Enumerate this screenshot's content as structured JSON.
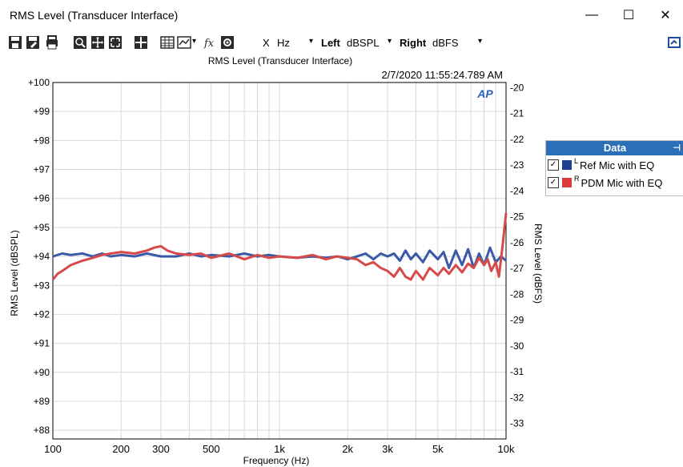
{
  "window": {
    "title": "RMS Level (Transducer Interface)",
    "minimize": "—",
    "maximize": "☐",
    "close": "✕"
  },
  "toolbar": {
    "x_label": "X",
    "x_unit": "Hz",
    "left_label": "Left",
    "left_unit": "dBSPL",
    "right_label": "Right",
    "right_unit": "dBFS"
  },
  "legend": {
    "header": "Data",
    "items": [
      {
        "channel": "L",
        "label": "Ref Mic with EQ",
        "color": "#1f3f8f",
        "checked": true
      },
      {
        "channel": "R",
        "label": "PDM Mic with EQ",
        "color": "#d93b3b",
        "checked": true
      }
    ]
  },
  "chart_data": {
    "type": "line",
    "title": "RMS Level (Transducer Interface)",
    "timestamp": "2/7/2020 11:55:24.789 AM",
    "logo": "AP",
    "xlabel": "Frequency (Hz)",
    "ylabel_left": "RMS Level (dBSPL)",
    "ylabel_right": "RMS Level (dBFS)",
    "x_scale": "log",
    "xlim": [
      100,
      10000
    ],
    "ylim_left": [
      87.7,
      100
    ],
    "ylim_right": [
      -33.6,
      -19.8
    ],
    "x_ticks": [
      {
        "value": 100,
        "label": "100"
      },
      {
        "value": 200,
        "label": "200"
      },
      {
        "value": 300,
        "label": "300"
      },
      {
        "value": 500,
        "label": "500"
      },
      {
        "value": 1000,
        "label": "1k"
      },
      {
        "value": 2000,
        "label": "2k"
      },
      {
        "value": 3000,
        "label": "3k"
      },
      {
        "value": 5000,
        "label": "5k"
      },
      {
        "value": 10000,
        "label": "10k"
      }
    ],
    "y_ticks_left": [
      {
        "value": 100,
        "label": "+100"
      },
      {
        "value": 99,
        "label": "+99"
      },
      {
        "value": 98,
        "label": "+98"
      },
      {
        "value": 97,
        "label": "+97"
      },
      {
        "value": 96,
        "label": "+96"
      },
      {
        "value": 95,
        "label": "+95"
      },
      {
        "value": 94,
        "label": "+94"
      },
      {
        "value": 93,
        "label": "+93"
      },
      {
        "value": 92,
        "label": "+92"
      },
      {
        "value": 91,
        "label": "+91"
      },
      {
        "value": 90,
        "label": "+90"
      },
      {
        "value": 89,
        "label": "+89"
      },
      {
        "value": 88,
        "label": "+88"
      }
    ],
    "y_ticks_right": [
      {
        "value": -20,
        "label": "-20"
      },
      {
        "value": -21,
        "label": "-21"
      },
      {
        "value": -22,
        "label": "-22"
      },
      {
        "value": -23,
        "label": "-23"
      },
      {
        "value": -24,
        "label": "-24"
      },
      {
        "value": -25,
        "label": "-25"
      },
      {
        "value": -26,
        "label": "-26"
      },
      {
        "value": -27,
        "label": "-27"
      },
      {
        "value": -28,
        "label": "-28"
      },
      {
        "value": -29,
        "label": "-29"
      },
      {
        "value": -30,
        "label": "-30"
      },
      {
        "value": -31,
        "label": "-31"
      },
      {
        "value": -32,
        "label": "-32"
      },
      {
        "value": -33,
        "label": "-33"
      }
    ],
    "grid": true,
    "series": [
      {
        "name": "Ref Mic with EQ",
        "axis": "left",
        "color": "#3a5aa8",
        "x": [
          100,
          110,
          120,
          135,
          150,
          165,
          180,
          200,
          230,
          260,
          300,
          350,
          400,
          450,
          500,
          600,
          700,
          800,
          900,
          1000,
          1200,
          1400,
          1600,
          1800,
          2000,
          2200,
          2400,
          2600,
          2800,
          3000,
          3200,
          3400,
          3600,
          3800,
          4000,
          4300,
          4600,
          5000,
          5300,
          5600,
          6000,
          6400,
          6800,
          7200,
          7600,
          8000,
          8500,
          9000,
          9500,
          10000
        ],
        "values": [
          94.0,
          94.1,
          94.05,
          94.1,
          94.0,
          94.1,
          94.0,
          94.05,
          94.0,
          94.1,
          94.0,
          94.0,
          94.1,
          94.0,
          94.05,
          94.0,
          94.1,
          94.0,
          94.05,
          94.0,
          93.95,
          94.0,
          93.95,
          94.0,
          93.9,
          94.0,
          94.1,
          93.9,
          94.1,
          94.0,
          94.1,
          93.85,
          94.2,
          93.9,
          94.1,
          93.8,
          94.2,
          93.9,
          94.15,
          93.6,
          94.2,
          93.7,
          94.25,
          93.6,
          94.1,
          93.7,
          94.3,
          93.8,
          94.0,
          93.85
        ]
      },
      {
        "name": "PDM Mic with EQ",
        "axis": "left",
        "color": "#d74a4a",
        "x": [
          100,
          105,
          110,
          120,
          135,
          150,
          165,
          180,
          200,
          230,
          260,
          280,
          300,
          320,
          350,
          400,
          450,
          500,
          600,
          700,
          800,
          900,
          1000,
          1200,
          1400,
          1600,
          1800,
          2000,
          2200,
          2400,
          2600,
          2800,
          3000,
          3200,
          3400,
          3600,
          3800,
          4000,
          4300,
          4600,
          5000,
          5300,
          5600,
          6000,
          6400,
          6800,
          7200,
          7600,
          8000,
          8300,
          8600,
          9000,
          9300,
          9600,
          10000
        ],
        "values": [
          93.2,
          93.4,
          93.5,
          93.7,
          93.85,
          93.95,
          94.05,
          94.1,
          94.15,
          94.1,
          94.2,
          94.3,
          94.35,
          94.2,
          94.1,
          94.05,
          94.1,
          93.95,
          94.1,
          93.9,
          94.05,
          93.95,
          94.0,
          93.95,
          94.05,
          93.9,
          94.0,
          93.95,
          93.9,
          93.7,
          93.8,
          93.6,
          93.5,
          93.3,
          93.6,
          93.3,
          93.2,
          93.5,
          93.2,
          93.6,
          93.35,
          93.6,
          93.4,
          93.7,
          93.45,
          93.75,
          93.6,
          93.95,
          93.7,
          93.9,
          93.5,
          93.8,
          93.3,
          94.2,
          95.5
        ]
      }
    ]
  }
}
